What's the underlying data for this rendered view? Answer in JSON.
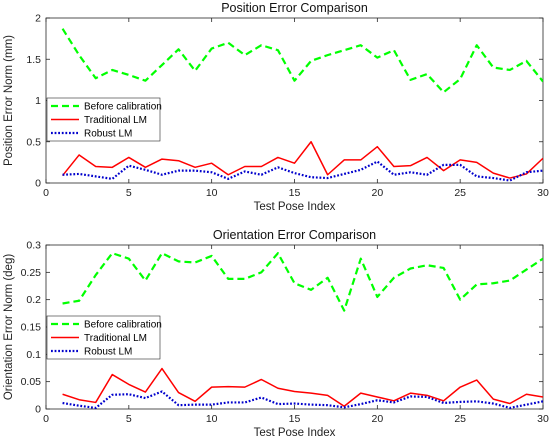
{
  "chart_data": [
    {
      "type": "line",
      "title": "Position Error Comparison",
      "xlabel": "Test Pose Index",
      "ylabel": "Position Error Norm (mm)",
      "xlim": [
        0,
        30
      ],
      "ylim": [
        0,
        2
      ],
      "xticks": [
        0,
        5,
        10,
        15,
        20,
        25,
        30
      ],
      "yticks": [
        0,
        0.5,
        1,
        1.5,
        2
      ],
      "ytick_labels": [
        "0",
        "0.5",
        "1",
        "1.5",
        "2"
      ],
      "legend_position": "left",
      "x": [
        1,
        2,
        3,
        4,
        5,
        6,
        7,
        8,
        9,
        10,
        11,
        12,
        13,
        14,
        15,
        16,
        17,
        18,
        19,
        20,
        21,
        22,
        23,
        24,
        25,
        26,
        27,
        28,
        29,
        30
      ],
      "series": [
        {
          "name": "Before calibration",
          "color": "#00ff00",
          "style": "dashed",
          "values": [
            1.87,
            1.55,
            1.27,
            1.37,
            1.31,
            1.24,
            1.43,
            1.62,
            1.36,
            1.63,
            1.7,
            1.55,
            1.67,
            1.61,
            1.24,
            1.48,
            1.55,
            1.61,
            1.67,
            1.52,
            1.61,
            1.25,
            1.32,
            1.1,
            1.26,
            1.67,
            1.4,
            1.37,
            1.48,
            1.23
          ]
        },
        {
          "name": "Traditional LM",
          "color": "#ff0000",
          "style": "solid",
          "values": [
            0.09,
            0.34,
            0.2,
            0.19,
            0.31,
            0.19,
            0.29,
            0.27,
            0.19,
            0.24,
            0.1,
            0.2,
            0.2,
            0.31,
            0.24,
            0.5,
            0.1,
            0.28,
            0.28,
            0.44,
            0.2,
            0.21,
            0.31,
            0.15,
            0.28,
            0.25,
            0.12,
            0.06,
            0.11,
            0.3
          ]
        },
        {
          "name": "Robust LM",
          "color": "#0000cc",
          "style": "dotted",
          "values": [
            0.1,
            0.11,
            0.08,
            0.05,
            0.21,
            0.16,
            0.1,
            0.15,
            0.15,
            0.13,
            0.05,
            0.14,
            0.1,
            0.19,
            0.12,
            0.07,
            0.06,
            0.11,
            0.16,
            0.26,
            0.1,
            0.13,
            0.1,
            0.22,
            0.22,
            0.08,
            0.06,
            0.03,
            0.13,
            0.15
          ]
        }
      ]
    },
    {
      "type": "line",
      "title": "Orientation Error Comparison",
      "xlabel": "Test Pose Index",
      "ylabel": "Orientation Error Norm (deg)",
      "xlim": [
        0,
        30
      ],
      "ylim": [
        0,
        0.3
      ],
      "xticks": [
        0,
        5,
        10,
        15,
        20,
        25,
        30
      ],
      "yticks": [
        0,
        0.05,
        0.1,
        0.15,
        0.2,
        0.25,
        0.3
      ],
      "ytick_labels": [
        "0",
        "0.05",
        "0.1",
        "0.15",
        "0.2",
        "0.25",
        "0.3"
      ],
      "legend_position": "left",
      "x": [
        1,
        2,
        3,
        4,
        5,
        6,
        7,
        8,
        9,
        10,
        11,
        12,
        13,
        14,
        15,
        16,
        17,
        18,
        19,
        20,
        21,
        22,
        23,
        24,
        25,
        26,
        27,
        28,
        29,
        30
      ],
      "series": [
        {
          "name": "Before calibration",
          "color": "#00ff00",
          "style": "dashed",
          "values": [
            0.193,
            0.198,
            0.245,
            0.285,
            0.275,
            0.235,
            0.285,
            0.27,
            0.268,
            0.28,
            0.238,
            0.238,
            0.25,
            0.285,
            0.23,
            0.218,
            0.24,
            0.18,
            0.275,
            0.205,
            0.24,
            0.257,
            0.263,
            0.258,
            0.2,
            0.228,
            0.23,
            0.235,
            0.255,
            0.275
          ]
        },
        {
          "name": "Traditional LM",
          "color": "#ff0000",
          "style": "solid",
          "values": [
            0.027,
            0.017,
            0.012,
            0.063,
            0.045,
            0.031,
            0.074,
            0.03,
            0.014,
            0.04,
            0.041,
            0.04,
            0.054,
            0.038,
            0.032,
            0.029,
            0.025,
            0.005,
            0.029,
            0.022,
            0.015,
            0.029,
            0.025,
            0.015,
            0.04,
            0.053,
            0.018,
            0.01,
            0.027,
            0.022
          ]
        },
        {
          "name": "Robust LM",
          "color": "#0000cc",
          "style": "dotted",
          "values": [
            0.011,
            0.006,
            0.002,
            0.026,
            0.027,
            0.02,
            0.032,
            0.007,
            0.008,
            0.008,
            0.012,
            0.012,
            0.021,
            0.009,
            0.01,
            0.008,
            0.007,
            0.003,
            0.009,
            0.016,
            0.012,
            0.023,
            0.022,
            0.011,
            0.013,
            0.014,
            0.01,
            0.002,
            0.008,
            0.014
          ]
        }
      ]
    }
  ]
}
